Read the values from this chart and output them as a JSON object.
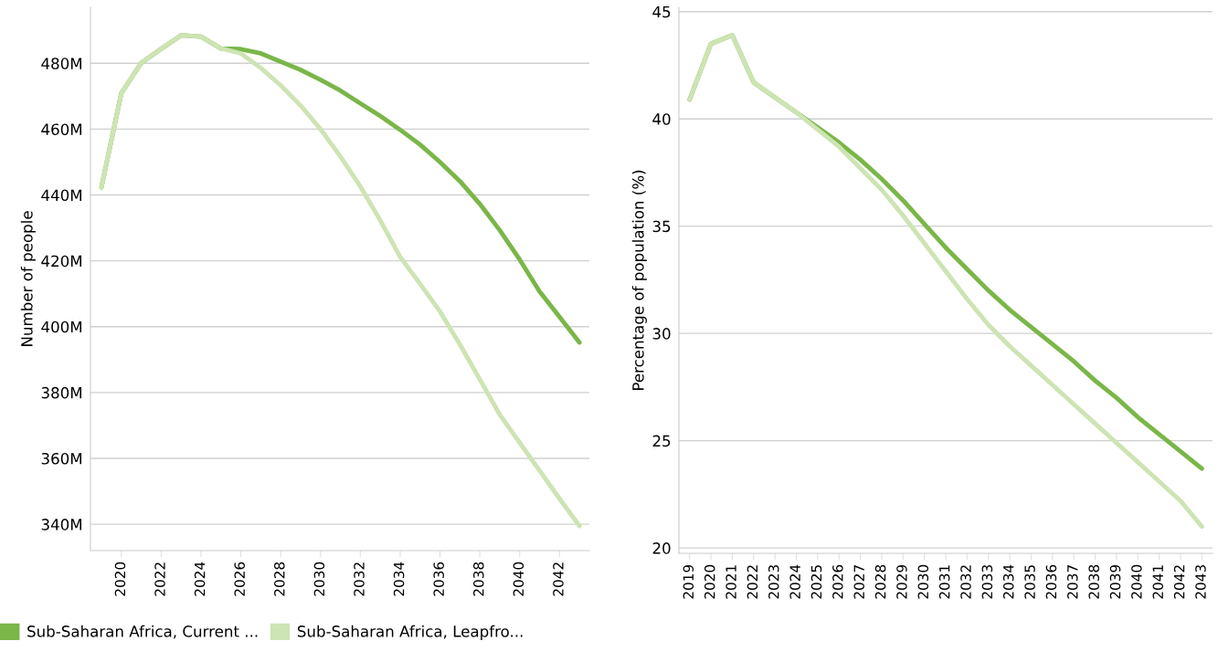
{
  "chart_data": [
    {
      "type": "line",
      "ylabel": "Number of people",
      "x": [
        2019,
        2020,
        2021,
        2022,
        2023,
        2024,
        2025,
        2026,
        2027,
        2028,
        2029,
        2030,
        2031,
        2032,
        2033,
        2034,
        2035,
        2036,
        2037,
        2038,
        2039,
        2040,
        2041,
        2042,
        2043
      ],
      "xlim": [
        2018.45,
        2043.5
      ],
      "xticks": [
        2020,
        2022,
        2024,
        2026,
        2028,
        2030,
        2032,
        2034,
        2036,
        2038,
        2040,
        2042
      ],
      "ylim": [
        332,
        497
      ],
      "yticks": [
        {
          "value": 340,
          "label": "340M"
        },
        {
          "value": 360,
          "label": "360M"
        },
        {
          "value": 380,
          "label": "380M"
        },
        {
          "value": 400,
          "label": "400M"
        },
        {
          "value": 420,
          "label": "420M"
        },
        {
          "value": 440,
          "label": "440M"
        },
        {
          "value": 460,
          "label": "460M"
        },
        {
          "value": 480,
          "label": "480M"
        }
      ],
      "grid": "y",
      "legend": "bottom",
      "marker": "none",
      "line_style": "solid",
      "series": [
        {
          "name": "Sub-Saharan Africa, Current ...",
          "color": "#7ab648",
          "values": [
            442.3,
            470.9,
            480.1,
            484.4,
            488.5,
            488.1,
            484.5,
            484.3,
            483,
            480.5,
            478,
            475,
            471.7,
            467.8,
            464,
            459.8,
            455.3,
            450,
            444.2,
            437.3,
            429.3,
            420.4,
            410.7,
            403,
            395.2
          ]
        },
        {
          "name": "Sub-Saharan Africa, Leapfro...",
          "color": "#cde4b3",
          "values": [
            442.3,
            470.9,
            480.1,
            484.4,
            488.5,
            488.1,
            484.5,
            483,
            478.6,
            473.3,
            467.2,
            460,
            451.7,
            442.6,
            432.3,
            421.2,
            413,
            404.6,
            394.6,
            384,
            373.3,
            364.8,
            356.3,
            347.8,
            339.5
          ]
        }
      ]
    },
    {
      "type": "line",
      "ylabel": "Percentage of population (%)",
      "categories": [
        "2019",
        "2020",
        "2021",
        "2022",
        "2023",
        "2024",
        "2025",
        "2026",
        "2027",
        "2028",
        "2029",
        "2030",
        "2031",
        "2032",
        "2033",
        "2034",
        "2035",
        "2036",
        "2037",
        "2038",
        "2039",
        "2040",
        "2041",
        "2042",
        "2043"
      ],
      "ylim": [
        19.75,
        45.2
      ],
      "yticks": [
        20,
        25,
        30,
        35,
        40,
        45
      ],
      "grid": "y",
      "marker": "none",
      "line_style": "solid",
      "series": [
        {
          "color": "#7ab648",
          "values": [
            40.9,
            43.5,
            43.9,
            41.7,
            41.0,
            40.3,
            39.6,
            38.9,
            38.1,
            37.2,
            36.2,
            35.1,
            34.0,
            33.0,
            32.0,
            31.1,
            30.3,
            29.5,
            28.7,
            27.8,
            27.0,
            26.1,
            25.3,
            24.5,
            23.7
          ]
        },
        {
          "color": "#cde4b3",
          "values": [
            40.9,
            43.5,
            43.9,
            41.7,
            41.0,
            40.3,
            39.5,
            38.7,
            37.7,
            36.7,
            35.5,
            34.2,
            32.9,
            31.6,
            30.4,
            29.4,
            28.5,
            27.6,
            26.7,
            25.8,
            24.9,
            24.0,
            23.1,
            22.2,
            21.0
          ]
        }
      ]
    }
  ]
}
